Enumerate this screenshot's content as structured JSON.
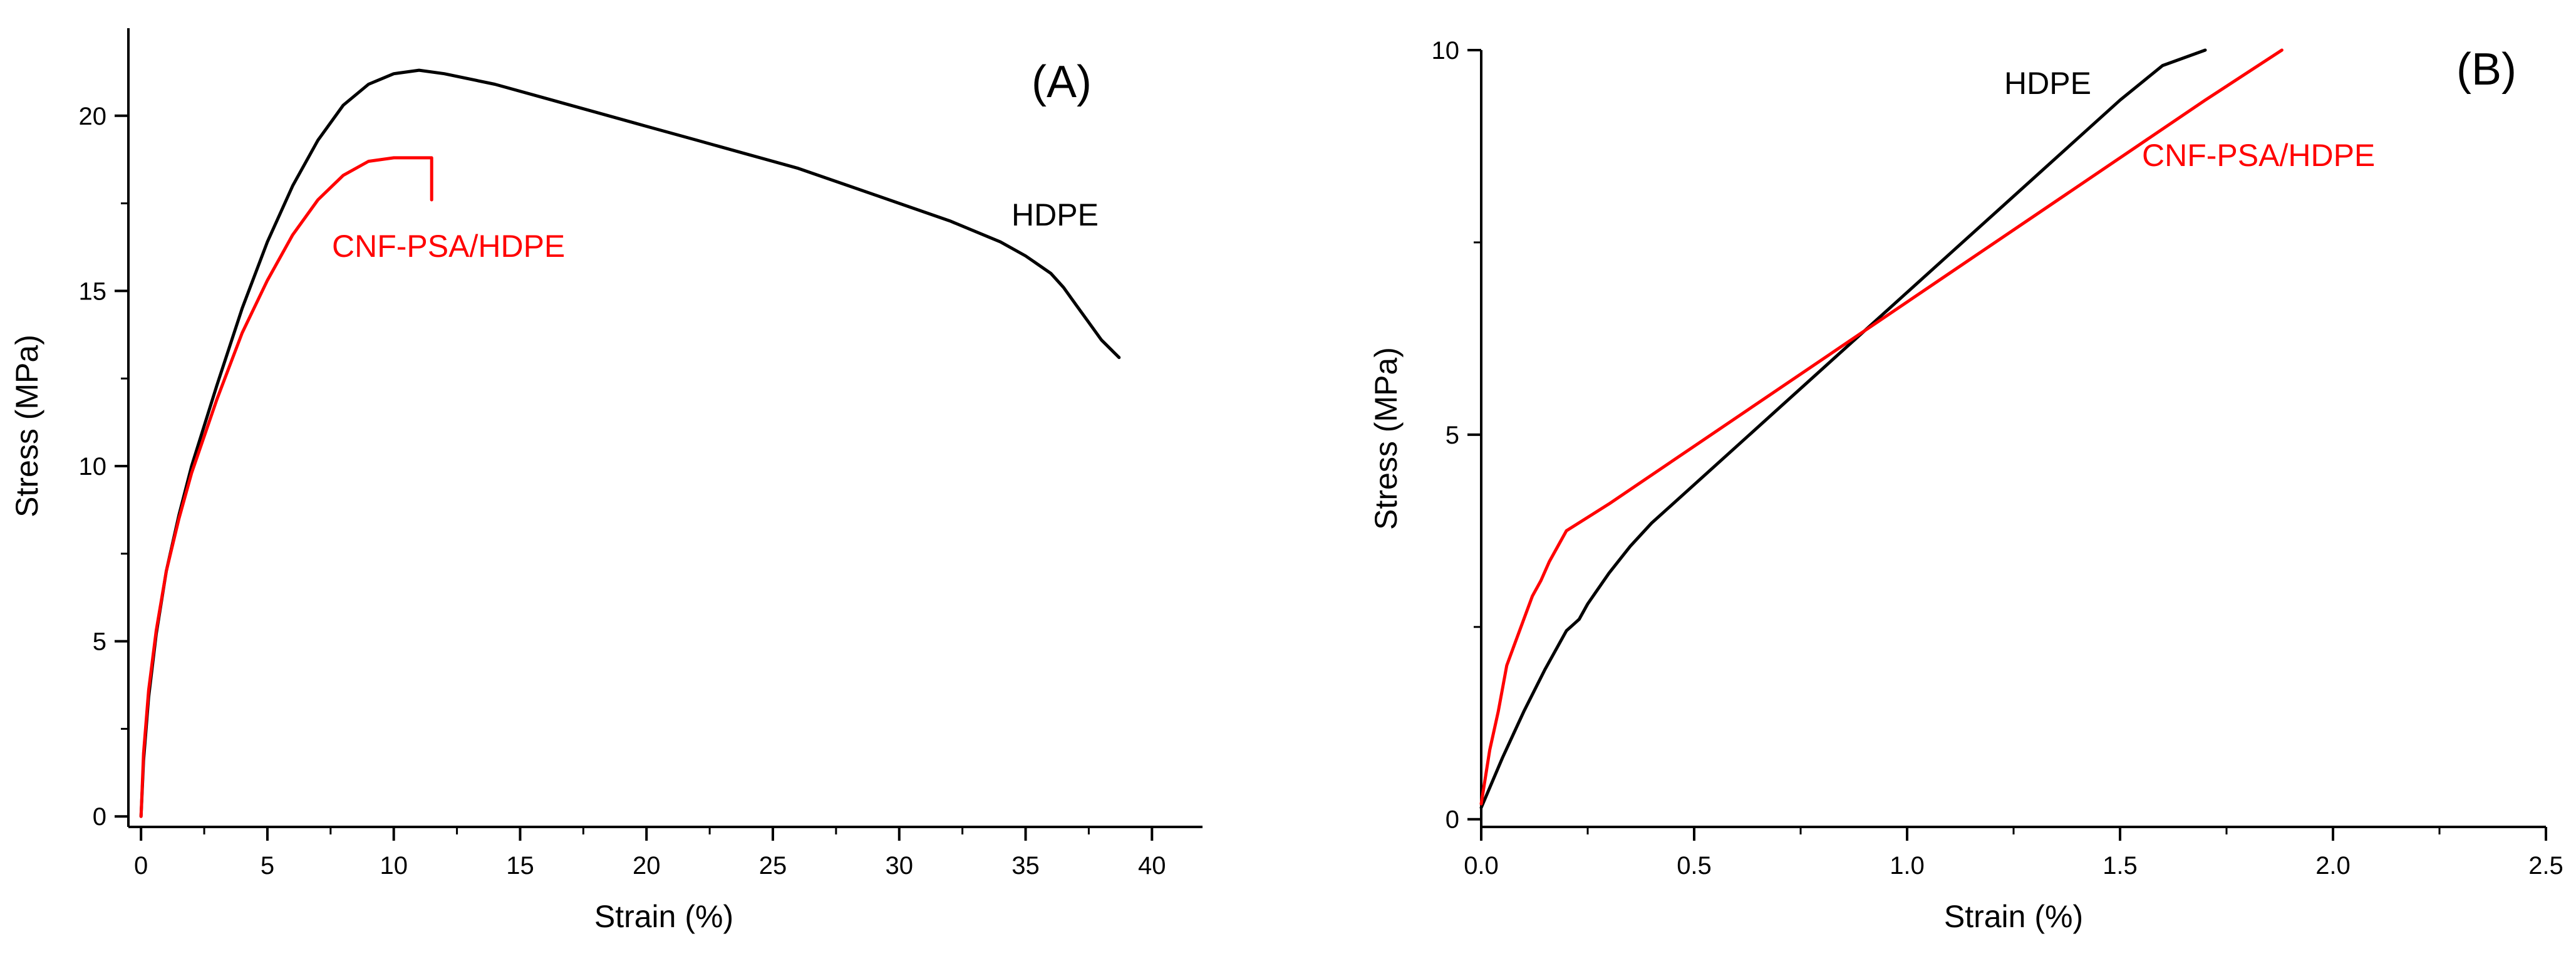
{
  "chart_data": [
    {
      "type": "line",
      "panel_label": "(A)",
      "xlabel": "Strain (%)",
      "ylabel": "Stress (MPa)",
      "xlim": [
        -0.5,
        42
      ],
      "ylim": [
        -0.3,
        22.5
      ],
      "xticks": [
        0,
        5,
        10,
        15,
        20,
        25,
        30,
        35,
        40
      ],
      "yticks": [
        0,
        5,
        10,
        15,
        20
      ],
      "xtick_labels": [
        "0",
        "5",
        "10",
        "15",
        "20",
        "25",
        "30",
        "35",
        "40"
      ],
      "ytick_labels": [
        "0",
        "5",
        "10",
        "15",
        "20"
      ],
      "series": [
        {
          "name": "HDPE",
          "label": "HDPE",
          "color": "#000000",
          "x": [
            0,
            0.1,
            0.3,
            0.6,
            1,
            1.5,
            2,
            3,
            4,
            5,
            6,
            7,
            8,
            9,
            10,
            11,
            12,
            14,
            16,
            18,
            20,
            22,
            24,
            26,
            28,
            30,
            32,
            34,
            35,
            36,
            36.5,
            37,
            37.5,
            38,
            38.7
          ],
          "y": [
            0,
            1.6,
            3.4,
            5.2,
            7.0,
            8.6,
            10.0,
            12.3,
            14.5,
            16.4,
            18.0,
            19.3,
            20.3,
            20.9,
            21.2,
            21.3,
            21.2,
            20.9,
            20.5,
            20.1,
            19.7,
            19.3,
            18.9,
            18.5,
            18.0,
            17.5,
            17.0,
            16.4,
            16.0,
            15.5,
            15.1,
            14.6,
            14.1,
            13.6,
            13.1
          ]
        },
        {
          "name": "CNF-PSA/HDPE",
          "label": "CNF-PSA/HDPE",
          "color": "#ff0000",
          "x": [
            0,
            0.1,
            0.3,
            0.6,
            1,
            1.5,
            2,
            3,
            4,
            5,
            6,
            7,
            8,
            9,
            10,
            11,
            11.5,
            11.5
          ],
          "y": [
            0,
            1.8,
            3.6,
            5.3,
            7.0,
            8.5,
            9.8,
            11.9,
            13.8,
            15.3,
            16.6,
            17.6,
            18.3,
            18.7,
            18.8,
            18.8,
            18.8,
            17.6
          ]
        }
      ]
    },
    {
      "type": "line",
      "panel_label": "(B)",
      "xlabel": "Strain (%)",
      "ylabel": "Stress (MPa)",
      "xlim": [
        0,
        2.5
      ],
      "ylim": [
        -0.1,
        10
      ],
      "xticks": [
        0,
        0.5,
        1.0,
        1.5,
        2.0,
        2.5
      ],
      "yticks": [
        0,
        5,
        10
      ],
      "xtick_labels": [
        "0.0",
        "0.5",
        "1.0",
        "1.5",
        "2.0",
        "2.5"
      ],
      "ytick_labels": [
        "0",
        "5",
        "10"
      ],
      "series": [
        {
          "name": "HDPE",
          "label": "HDPE",
          "color": "#000000",
          "x": [
            0,
            0.05,
            0.1,
            0.15,
            0.2,
            0.22,
            0.23,
            0.25,
            0.3,
            0.35,
            0.4,
            0.5,
            0.6,
            0.7,
            0.8,
            0.9,
            1.0,
            1.1,
            1.2,
            1.3,
            1.4,
            1.5,
            1.6,
            1.7
          ],
          "y": [
            0.15,
            0.8,
            1.4,
            1.95,
            2.45,
            2.55,
            2.6,
            2.8,
            3.2,
            3.55,
            3.85,
            4.35,
            4.85,
            5.35,
            5.85,
            6.35,
            6.85,
            7.35,
            7.85,
            8.35,
            8.85,
            9.35,
            9.8,
            10.0
          ]
        },
        {
          "name": "CNF-PSA/HDPE",
          "label": "CNF-PSA/HDPE",
          "color": "#ff0000",
          "x": [
            0,
            0.02,
            0.04,
            0.06,
            0.08,
            0.1,
            0.12,
            0.14,
            0.16,
            0.18,
            0.2,
            0.3,
            0.5,
            0.7,
            0.9,
            1.1,
            1.3,
            1.5,
            1.7,
            1.88
          ],
          "y": [
            0.2,
            0.9,
            1.4,
            2.0,
            2.3,
            2.6,
            2.9,
            3.1,
            3.35,
            3.55,
            3.75,
            4.1,
            4.85,
            5.6,
            6.35,
            7.1,
            7.85,
            8.6,
            9.35,
            10.0
          ]
        }
      ]
    }
  ]
}
